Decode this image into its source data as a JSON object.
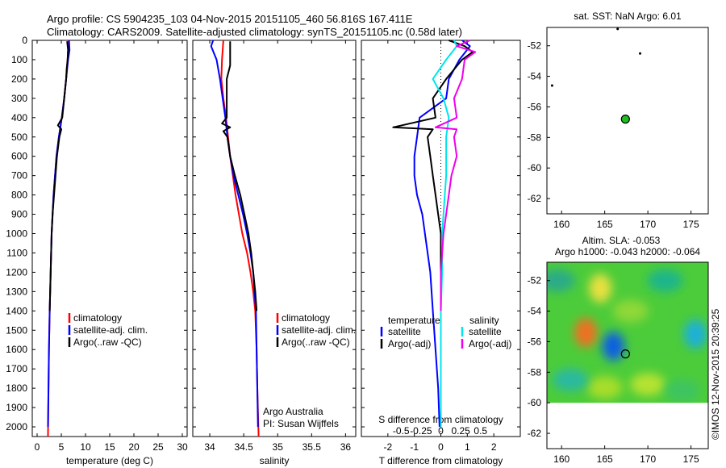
{
  "header": {
    "line1": "Argo profile: CS 5904235_103 04-Nov-2015 20151105_460 56.816S 167.411E",
    "line2": "Climatology: CARS2009. Satellite-adjusted climatology: synTS_20151105.nc (0.58d later)"
  },
  "colors": {
    "climatology": "#ff0000",
    "satellite": "#0000ff",
    "argo": "#000000",
    "sal_satellite": "#00e5ee",
    "sal_argo": "#ee00ee",
    "map_dot": "#22bb22"
  },
  "depth_axis": {
    "ylim": [
      0,
      2050
    ],
    "ticks": [
      0,
      100,
      200,
      300,
      400,
      500,
      600,
      700,
      800,
      900,
      1000,
      1100,
      1200,
      1300,
      1400,
      1500,
      1600,
      1700,
      1800,
      1900,
      2000
    ],
    "tick_labels": [
      "0",
      "100",
      "200",
      "300",
      "400",
      "500",
      "600",
      "700",
      "800",
      "900",
      "1000",
      "1100",
      "1200",
      "1300",
      "1400",
      "1500",
      "1600",
      "1700",
      "1800",
      "1900",
      "2000"
    ]
  },
  "legend_labels": {
    "clim": "climatology",
    "sat": "satellite-adj. clim.",
    "argo": "Argo(..raw -QC)",
    "temperature": "temperature",
    "salinity": "salinity",
    "satellite": "satellite",
    "argo_adj": "Argo(-adj)"
  },
  "annotations": {
    "argo_australia": "Argo Australia",
    "pi": "PI: Susan Wijffels",
    "s_diff_label": "S difference from climatology",
    "imos_stamp": "©IMOS 12-Nov-2015 20:39:25"
  },
  "chart_data": [
    {
      "type": "line",
      "panel": "temperature",
      "xlabel": "temperature (deg C)",
      "xlim": [
        -1,
        31
      ],
      "xticks": [
        0,
        5,
        10,
        15,
        20,
        25,
        30
      ],
      "xtick_labels": [
        "0",
        "5",
        "10",
        "15",
        "20",
        "25",
        "30"
      ],
      "series": [
        {
          "name": "climatology",
          "color": "#ff0000",
          "depth": [
            0,
            50,
            100,
            200,
            300,
            400,
            500,
            600,
            700,
            800,
            900,
            1000,
            1200,
            1400,
            1600,
            1800,
            2050
          ],
          "values": [
            6.5,
            6.4,
            6.3,
            6.0,
            5.6,
            5.1,
            4.5,
            4.0,
            3.7,
            3.4,
            3.2,
            3.0,
            2.8,
            2.6,
            2.45,
            2.35,
            2.25
          ]
        },
        {
          "name": "satellite-adj. clim.",
          "color": "#0000ff",
          "depth": [
            0,
            50,
            100,
            200,
            300,
            400,
            500,
            600,
            700,
            800,
            900,
            1000,
            1200,
            1400,
            1600,
            1800,
            2000
          ],
          "values": [
            6.6,
            6.7,
            6.4,
            6.0,
            5.6,
            5.1,
            4.5,
            4.0,
            3.7,
            3.4,
            3.2,
            3.0,
            2.8,
            2.6,
            2.45,
            2.35,
            2.25
          ]
        },
        {
          "name": "Argo(..raw -QC)",
          "color": "#000000",
          "depth": [
            5,
            50,
            100,
            150,
            200,
            300,
            400,
            440,
            460,
            500,
            600,
            700,
            800,
            900,
            1000,
            1200,
            1400
          ],
          "values": [
            6.2,
            6.4,
            6.3,
            6.1,
            6.0,
            5.6,
            5.2,
            4.3,
            5.0,
            4.6,
            4.1,
            3.8,
            3.5,
            3.2,
            3.0,
            2.8,
            2.6
          ]
        }
      ]
    },
    {
      "type": "line",
      "panel": "salinity",
      "xlabel": "salinity",
      "xlim": [
        33.75,
        36.15
      ],
      "xticks": [
        34,
        34.5,
        35,
        35.5,
        36
      ],
      "xtick_labels": [
        "34",
        "34.5",
        "35",
        "35.5",
        "36"
      ],
      "series": [
        {
          "name": "climatology",
          "color": "#ff0000",
          "depth": [
            0,
            100,
            200,
            300,
            400,
            500,
            600,
            700,
            800,
            900,
            1000,
            1100,
            1200,
            1300,
            1400,
            1600,
            1800,
            2050
          ],
          "values": [
            34.2,
            34.18,
            34.17,
            34.2,
            34.24,
            34.27,
            34.3,
            34.34,
            34.38,
            34.43,
            34.48,
            34.55,
            34.6,
            34.64,
            34.67,
            34.69,
            34.7,
            34.72
          ]
        },
        {
          "name": "satellite-adj. clim.",
          "color": "#0000ff",
          "depth": [
            0,
            30,
            100,
            200,
            300,
            400,
            500,
            600,
            700,
            800,
            900,
            1000,
            1100,
            1200,
            1300,
            1400,
            1600,
            1800,
            2000
          ],
          "values": [
            34.05,
            34.02,
            34.1,
            34.15,
            34.19,
            34.23,
            34.26,
            34.3,
            34.35,
            34.42,
            34.49,
            34.55,
            34.6,
            34.64,
            34.66,
            34.68,
            34.69,
            34.7,
            34.71
          ]
        },
        {
          "name": "Argo(..raw -QC)",
          "color": "#000000",
          "depth": [
            5,
            60,
            130,
            200,
            300,
            400,
            430,
            450,
            470,
            500,
            600,
            700,
            800,
            900,
            1000,
            1100,
            1200,
            1300,
            1400
          ],
          "values": [
            34.3,
            34.3,
            34.3,
            34.25,
            34.25,
            34.25,
            34.18,
            34.3,
            34.2,
            34.26,
            34.3,
            34.37,
            34.45,
            34.51,
            34.57,
            34.61,
            34.64,
            34.67,
            34.69
          ]
        }
      ]
    },
    {
      "type": "line",
      "panel": "differences",
      "xlabel": "T difference from climatology",
      "xlim": [
        -3,
        3
      ],
      "xticks": [
        -2,
        -1,
        0,
        1,
        2
      ],
      "xtick_labels": [
        "-2",
        "-1",
        "0",
        "1",
        "2"
      ],
      "s_xticks": [
        -1.5,
        -0.75,
        0,
        0.75,
        1.5
      ],
      "s_xtick_labels": [
        "-0.5",
        "-0.25",
        "0",
        "0.25",
        "0.5"
      ],
      "zero_line": 0,
      "series": [
        {
          "name": "temperature satellite",
          "color": "#0000ff",
          "depth": [
            0,
            30,
            100,
            200,
            300,
            400,
            500,
            600,
            700,
            800,
            900,
            1000,
            1200,
            1400,
            1600,
            1800,
            2000
          ],
          "values": [
            0.8,
            1.1,
            0.7,
            0.3,
            0.2,
            -0.8,
            -0.9,
            -1.0,
            -1.0,
            -0.9,
            -0.7,
            -0.6,
            -0.4,
            -0.3,
            -0.2,
            -0.1,
            -0.05
          ]
        },
        {
          "name": "temperature Argo(-adj)",
          "color": "#000000",
          "depth": [
            0,
            30,
            60,
            100,
            200,
            300,
            400,
            450,
            460,
            500,
            600,
            700,
            800,
            900,
            1000,
            1200,
            1400
          ],
          "values": [
            0.3,
            0.9,
            1.2,
            0.8,
            0.2,
            -0.3,
            -0.2,
            -1.8,
            -0.3,
            -0.5,
            -0.4,
            -0.3,
            -0.2,
            -0.1,
            0.0,
            0.0,
            0.0
          ]
        },
        {
          "name": "salinity satellite",
          "color": "#00e5ee",
          "depth": [
            0,
            30,
            100,
            200,
            300,
            400,
            500,
            600,
            700,
            800,
            900,
            1000,
            1200,
            1400,
            1600,
            1800,
            2000
          ],
          "values": [
            0.5,
            0.6,
            0.2,
            -0.3,
            0.1,
            0.3,
            0.2,
            0.2,
            0.2,
            0.15,
            0.1,
            0.05,
            0.05,
            0.0,
            0.0,
            0.0,
            0.0
          ]
        },
        {
          "name": "salinity Argo(-adj)",
          "color": "#ee00ee",
          "depth": [
            0,
            30,
            60,
            100,
            200,
            300,
            400,
            450,
            460,
            500,
            600,
            700,
            800,
            900,
            1000,
            1200,
            1400
          ],
          "values": [
            1.1,
            0.6,
            1.3,
            0.9,
            0.8,
            0.5,
            0.6,
            -0.2,
            0.6,
            0.5,
            0.6,
            0.4,
            0.3,
            0.2,
            0.1,
            0.0,
            0.0
          ]
        }
      ]
    },
    {
      "type": "scatter",
      "panel": "sst_map",
      "title": "sat. SST: NaN Argo: 6.01",
      "xlim": [
        158.3,
        177
      ],
      "ylim": [
        -63,
        -50.8
      ],
      "xticks": [
        160,
        165,
        170,
        175
      ],
      "xtick_labels": [
        "160",
        "165",
        "170",
        "175"
      ],
      "yticks": [
        -52,
        -54,
        -56,
        -58,
        -60,
        -62
      ],
      "ytick_labels": [
        "-52",
        "-54",
        "-56",
        "-58",
        "-60",
        "-62"
      ],
      "points": [
        {
          "lon": 167.4,
          "lat": -56.8,
          "label": "Argo"
        }
      ],
      "islands": [
        [
          169.1,
          -52.5
        ],
        [
          158.9,
          -54.6
        ],
        [
          166.5,
          -50.9
        ]
      ]
    },
    {
      "type": "heatmap",
      "panel": "sla_map",
      "title_line1": "Altim. SLA: -0.053",
      "title_line2": "Argo h1000: -0.043 h2000: -0.064",
      "xlim": [
        158.3,
        177
      ],
      "ylim": [
        -63,
        -50.8
      ],
      "data_ylim": [
        -60,
        -50.8
      ],
      "xticks": [
        160,
        165,
        170,
        175
      ],
      "xtick_labels": [
        "160",
        "165",
        "170",
        "175"
      ],
      "yticks": [
        -52,
        -54,
        -56,
        -58,
        -60,
        -62
      ],
      "ytick_labels": [
        "-52",
        "-54",
        "-56",
        "-58",
        "-60",
        "-62"
      ],
      "points": [
        {
          "lon": 167.4,
          "lat": -56.8,
          "label": "Argo"
        }
      ],
      "blobs": [
        {
          "lon": 166.0,
          "lat": -56.3,
          "level": -1.0
        },
        {
          "lon": 164.5,
          "lat": -52.5,
          "level": 0.4
        },
        {
          "lon": 175.5,
          "lat": -55.5,
          "level": -0.5
        },
        {
          "lon": 162.8,
          "lat": -55.4,
          "level": 0.7
        }
      ]
    }
  ]
}
